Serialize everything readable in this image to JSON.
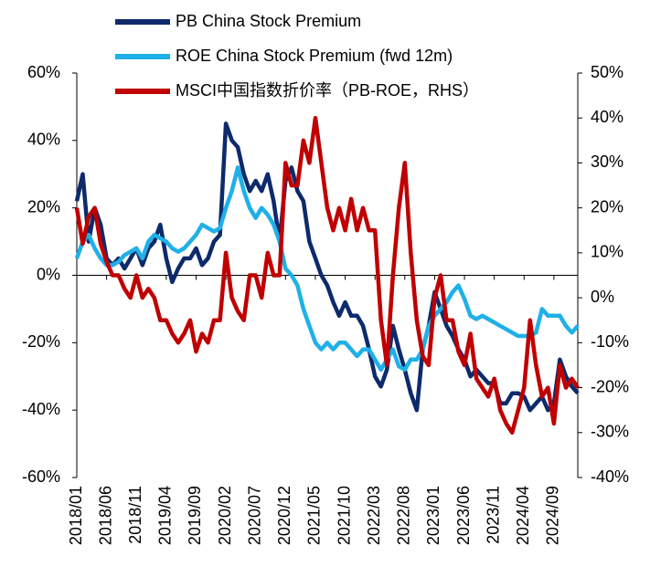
{
  "chart_data": {
    "type": "line",
    "categories": [
      "2018/01",
      null,
      null,
      null,
      null,
      "2018/06",
      null,
      null,
      null,
      null,
      "2018/11",
      null,
      null,
      null,
      null,
      "2019/04",
      null,
      null,
      null,
      null,
      "2019/09",
      null,
      null,
      null,
      null,
      "2020/02",
      null,
      null,
      null,
      null,
      "2020/07",
      null,
      null,
      null,
      null,
      "2020/12",
      null,
      null,
      null,
      null,
      "2021/05",
      null,
      null,
      null,
      null,
      "2021/10",
      null,
      null,
      null,
      null,
      "2022/03",
      null,
      null,
      null,
      null,
      "2022/08",
      null,
      null,
      null,
      null,
      "2023/01",
      null,
      null,
      null,
      null,
      "2023/06",
      null,
      null,
      null,
      null,
      "2023/11",
      null,
      null,
      null,
      null,
      "2024/04",
      null,
      null,
      null,
      null,
      "2024/09",
      null,
      null,
      null,
      null
    ],
    "series": [
      {
        "name": "PB China Stock Premium",
        "color": "#0d2a6b",
        "axis": "y",
        "values": [
          22,
          30,
          10,
          20,
          15,
          5,
          3,
          5,
          2,
          5,
          8,
          3,
          8,
          10,
          15,
          5,
          -2,
          2,
          5,
          5,
          8,
          3,
          5,
          10,
          12,
          45,
          40,
          38,
          30,
          25,
          28,
          25,
          30,
          22,
          10,
          28,
          32,
          25,
          22,
          10,
          5,
          0,
          -3,
          -8,
          -12,
          -8,
          -12,
          -12,
          -15,
          -22,
          -30,
          -33,
          -28,
          -15,
          -22,
          -28,
          -35,
          -40,
          -22,
          -15,
          -5,
          -10,
          -15,
          -18,
          -22,
          -25,
          -30,
          -28,
          -30,
          -32,
          -32,
          -38,
          -38,
          -35,
          -35,
          -36,
          -40,
          -38,
          -36,
          -40,
          -38,
          -25,
          -30,
          -33,
          -35
        ]
      },
      {
        "name": "ROE China Stock Premium (fwd 12m)",
        "color": "#1fb0e8",
        "axis": "y",
        "values": [
          5,
          10,
          12,
          8,
          5,
          3,
          3,
          4,
          6,
          7,
          8,
          5,
          10,
          12,
          11,
          10,
          8,
          7,
          8,
          10,
          12,
          15,
          14,
          13,
          14,
          20,
          25,
          32,
          25,
          20,
          17,
          20,
          18,
          15,
          10,
          2,
          0,
          -3,
          -10,
          -15,
          -20,
          -22,
          -20,
          -22,
          -20,
          -20,
          -22,
          -24,
          -22,
          -22,
          -25,
          -28,
          -25,
          -22,
          -27,
          -28,
          -25,
          -25,
          -22,
          -15,
          -12,
          -10,
          -8,
          -5,
          -3,
          -7,
          -12,
          -13,
          -12,
          -13,
          -14,
          -15,
          -16,
          -17,
          -18,
          -18,
          -18,
          -17,
          -10,
          -12,
          -12,
          -12,
          -15,
          -17,
          -15
        ]
      },
      {
        "name": "MSCI中国指数折价率（PB-ROE，RHS）",
        "color": "#c00000",
        "axis": "y2",
        "values": [
          20,
          12,
          18,
          20,
          12,
          8,
          5,
          5,
          2,
          0,
          5,
          0,
          2,
          0,
          -5,
          -5,
          -8,
          -10,
          -8,
          -5,
          -12,
          -8,
          -10,
          -5,
          -5,
          10,
          0,
          -3,
          -5,
          5,
          5,
          0,
          10,
          5,
          5,
          30,
          25,
          25,
          35,
          30,
          40,
          30,
          20,
          15,
          20,
          15,
          22,
          15,
          20,
          15,
          15,
          -5,
          -15,
          5,
          20,
          30,
          10,
          -5,
          -13,
          -15,
          0,
          5,
          -5,
          -5,
          -12,
          -15,
          -8,
          -18,
          -20,
          -22,
          -18,
          -25,
          -28,
          -30,
          -25,
          -20,
          -5,
          -15,
          -22,
          -20,
          -28,
          -15,
          -20,
          -18,
          -20
        ]
      }
    ],
    "ylim": [
      -60,
      60
    ],
    "yticks": [
      {
        "value": -60,
        "label": "-60%"
      },
      {
        "value": -40,
        "label": "-40%"
      },
      {
        "value": -20,
        "label": "-20%"
      },
      {
        "value": 0,
        "label": "0%"
      },
      {
        "value": 20,
        "label": "20%"
      },
      {
        "value": 40,
        "label": "40%"
      },
      {
        "value": 60,
        "label": "60%"
      }
    ],
    "y2lim": [
      -40,
      50
    ],
    "y2ticks": [
      {
        "value": -40,
        "label": "-40%"
      },
      {
        "value": -30,
        "label": "-30%"
      },
      {
        "value": -20,
        "label": "-20%"
      },
      {
        "value": -10,
        "label": "-10%"
      },
      {
        "value": 0,
        "label": "0%"
      },
      {
        "value": 10,
        "label": "10%"
      },
      {
        "value": 20,
        "label": "20%"
      },
      {
        "value": 30,
        "label": "30%"
      },
      {
        "value": 40,
        "label": "40%"
      },
      {
        "value": 50,
        "label": "50%"
      }
    ],
    "grid": false
  }
}
